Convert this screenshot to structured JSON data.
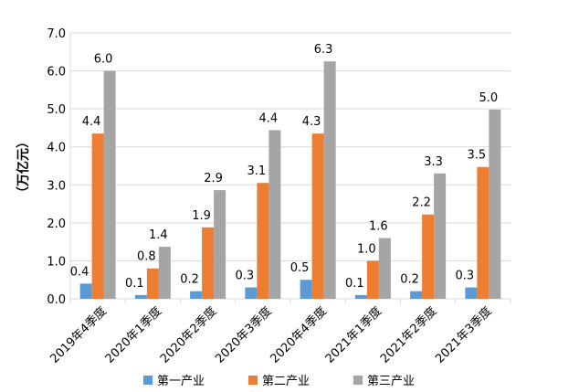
{
  "chart_data": {
    "type": "bar",
    "title": "",
    "xlabel": "",
    "ylabel": "（万亿元）",
    "ylim": [
      0,
      7
    ],
    "yticks": [
      "0.0",
      "1.0",
      "2.0",
      "3.0",
      "4.0",
      "5.0",
      "6.0",
      "7.0"
    ],
    "grid": true,
    "legend_position": "bottom",
    "categories": [
      "2019年4季度",
      "2020年1季度",
      "2020年2季度",
      "2020年3季度",
      "2020年4季度",
      "2021年1季度",
      "2021年2季度",
      "2021年3季度"
    ],
    "series": [
      {
        "name": "第一产业",
        "color": "#5B9BD5",
        "values": [
          0.4,
          0.1,
          0.2,
          0.3,
          0.5,
          0.1,
          0.2,
          0.3
        ],
        "labels": [
          "0.4",
          "0.1",
          "0.2",
          "0.3",
          "0.5",
          "0.1",
          "0.2",
          "0.3"
        ]
      },
      {
        "name": "第二产业",
        "color": "#ED7D31",
        "values": [
          4.35,
          0.8,
          1.88,
          3.05,
          4.35,
          1.0,
          2.22,
          3.47
        ],
        "labels": [
          "4.4",
          "0.8",
          "1.9",
          "3.1",
          "4.3",
          "1.0",
          "2.2",
          "3.5"
        ]
      },
      {
        "name": "第三产业",
        "color": "#A5A5A5",
        "values": [
          6.0,
          1.37,
          2.86,
          4.44,
          6.25,
          1.6,
          3.3,
          4.98
        ],
        "labels": [
          "6.0",
          "1.4",
          "2.9",
          "4.4",
          "6.3",
          "1.6",
          "3.3",
          "5.0"
        ]
      }
    ]
  }
}
